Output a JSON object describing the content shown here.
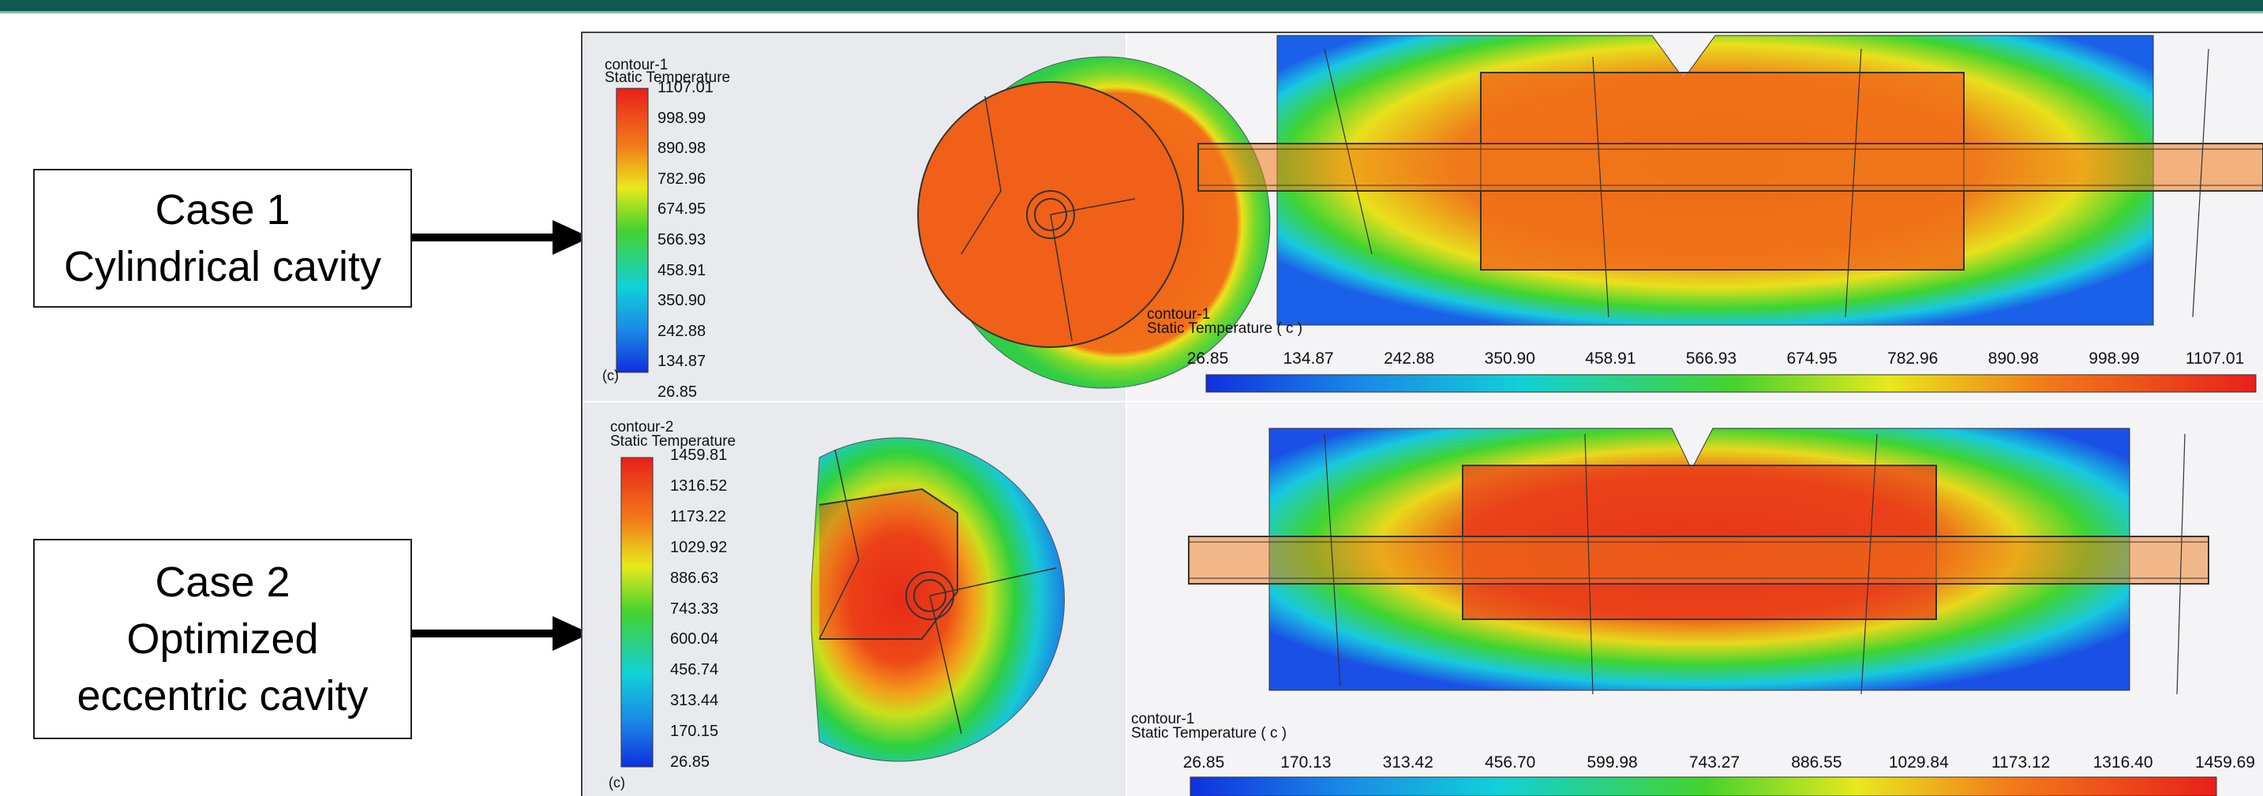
{
  "cases": [
    {
      "line1": "Case 1",
      "line2": "Cylindrical cavity",
      "line3": ""
    },
    {
      "line1": "Case 2",
      "line2": "Optimized",
      "line3": "eccentric cavity"
    }
  ],
  "contour1": {
    "name": "contour-1",
    "quantity": "Static Temperature",
    "unit_label": "(c)",
    "h_quantity": "Static Temperature ( c )",
    "ticks": [
      "1107.01",
      "998.99",
      "890.98",
      "782.96",
      "674.95",
      "566.93",
      "458.91",
      "350.90",
      "242.88",
      "134.87",
      "26.85"
    ],
    "hticks": [
      "26.85",
      "134.87",
      "242.88",
      "350.90",
      "458.91",
      "566.93",
      "674.95",
      "782.96",
      "890.98",
      "998.99",
      "1107.01"
    ]
  },
  "contour2": {
    "name": "contour-2",
    "quantity": "Static Temperature",
    "unit_label": "(c)",
    "h_name": "contour-1",
    "h_quantity": "Static Temperature ( c )",
    "ticks": [
      "1459.81",
      "1316.52",
      "1173.22",
      "1029.92",
      "886.63",
      "743.33",
      "600.04",
      "456.74",
      "313.44",
      "170.15",
      "26.85"
    ],
    "hticks": [
      "26.85",
      "170.13",
      "313.42",
      "456.70",
      "599.98",
      "743.27",
      "886.55",
      "1029.84",
      "1173.12",
      "1316.40",
      "1459.69"
    ]
  },
  "colors": {
    "hot": "#e8301a",
    "warm": "#f0641a",
    "yellow": "#e9e81c",
    "green": "#3ad23a",
    "cyan": "#12c8e8",
    "cold": "#1540e0",
    "header": "#0e5a4f"
  }
}
